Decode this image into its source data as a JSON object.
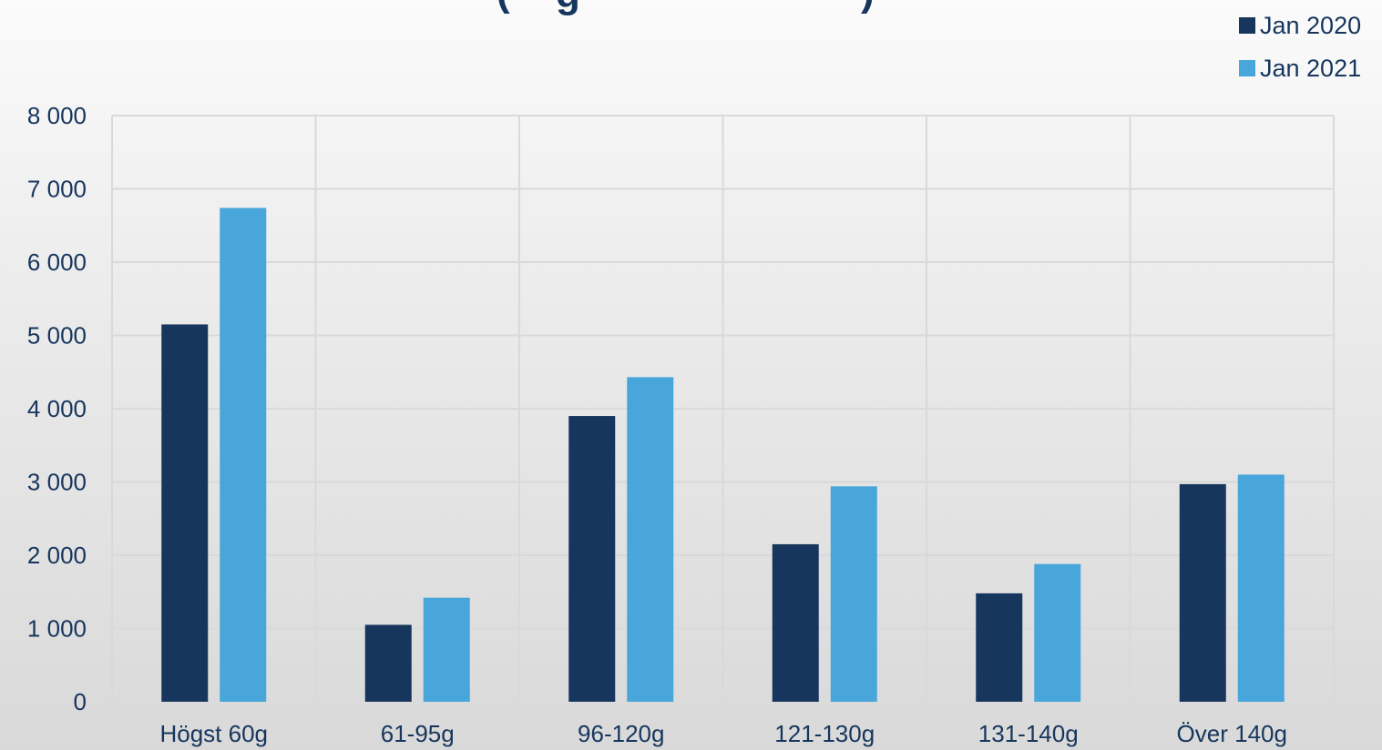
{
  "chart_data": {
    "type": "bar",
    "title_visible_fragment": "(  g        )",
    "categories": [
      "Högst 60g",
      "61-95g",
      "96-120g",
      "121-130g",
      "131-140g",
      "Över 140g"
    ],
    "series": [
      {
        "name": "Jan 2020",
        "color": "#17365d",
        "values": [
          5150,
          1050,
          3900,
          2150,
          1480,
          2970
        ]
      },
      {
        "name": "Jan 2021",
        "color": "#48a6db",
        "values": [
          6740,
          1420,
          4430,
          2940,
          1880,
          3100
        ]
      }
    ],
    "ylim": [
      0,
      8000
    ],
    "yticks": [
      0,
      1000,
      2000,
      3000,
      4000,
      5000,
      6000,
      7000,
      8000
    ],
    "ytick_labels": [
      "0",
      "1 000",
      "2 000",
      "3 000",
      "4 000",
      "5 000",
      "6 000",
      "7 000",
      "8 000"
    ],
    "grid": true,
    "legend_position": "top-right"
  }
}
